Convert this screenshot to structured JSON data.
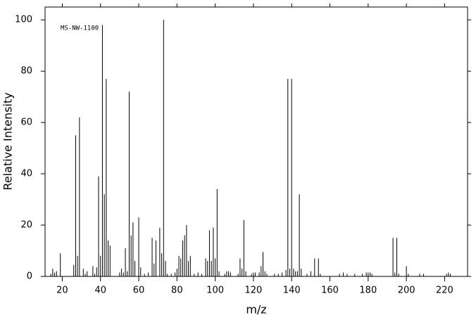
{
  "chart_data": {
    "type": "stem",
    "annotation": "MS-NW-1100",
    "xlabel": "m/z",
    "ylabel": "Relative Intensity",
    "color": "#000000",
    "x": [
      14,
      15,
      16,
      17,
      19,
      26,
      27,
      28,
      29,
      31,
      32,
      33,
      36,
      37,
      38,
      39,
      40,
      41,
      42,
      43,
      44,
      45,
      50,
      51,
      52,
      53,
      54,
      55,
      56,
      57,
      58,
      60,
      61,
      63,
      65,
      67,
      68,
      69,
      71,
      72,
      73,
      74,
      75,
      77,
      79,
      80,
      81,
      82,
      83,
      84,
      85,
      86,
      87,
      89,
      91,
      93,
      95,
      96,
      97,
      98,
      99,
      100,
      101,
      102,
      105,
      106,
      107,
      108,
      112,
      113,
      114,
      115,
      116,
      119,
      120,
      121,
      123,
      124,
      125,
      126,
      127,
      131,
      133,
      135,
      137,
      138,
      139,
      140,
      141,
      142,
      143,
      144,
      145,
      148,
      150,
      152,
      154,
      155,
      165,
      167,
      169,
      173,
      177,
      179,
      180,
      181,
      182,
      193,
      194,
      195,
      196,
      200,
      201,
      207,
      209,
      221,
      222,
      223
    ],
    "values": [
      1,
      3,
      1.5,
      2,
      9,
      4.5,
      55,
      8,
      62,
      3,
      1,
      2,
      4,
      1,
      3.5,
      39,
      8,
      98,
      32,
      77,
      14,
      12,
      1.5,
      3,
      1.5,
      11,
      2,
      72,
      16,
      21,
      6,
      23,
      3.5,
      1,
      1.5,
      15,
      5,
      14,
      19,
      9,
      100,
      6,
      1,
      1,
      1.5,
      3,
      8,
      7,
      14,
      16,
      20,
      6,
      8,
      1,
      1.5,
      1,
      7,
      6,
      18,
      6,
      19,
      7,
      34,
      2,
      1,
      2,
      2,
      1.5,
      1,
      7,
      3,
      22,
      2,
      1,
      1.5,
      1.5,
      1.5,
      4,
      9.5,
      2,
      1,
      1,
      1,
      1.5,
      2.5,
      77,
      3,
      77,
      3,
      2,
      2,
      32,
      3,
      1,
      2,
      7,
      7,
      1,
      1,
      1.5,
      1,
      1,
      1,
      1.5,
      1.5,
      1.5,
      1,
      15,
      1.5,
      15,
      1,
      4,
      1,
      1,
      1,
      1,
      1.5,
      1
    ],
    "xlim": [
      11,
      232
    ],
    "ylim": [
      0,
      105
    ],
    "xticks": [
      20,
      40,
      60,
      80,
      100,
      120,
      140,
      160,
      180,
      200,
      220
    ],
    "yticks": [
      0,
      20,
      40,
      60,
      80,
      100
    ]
  }
}
